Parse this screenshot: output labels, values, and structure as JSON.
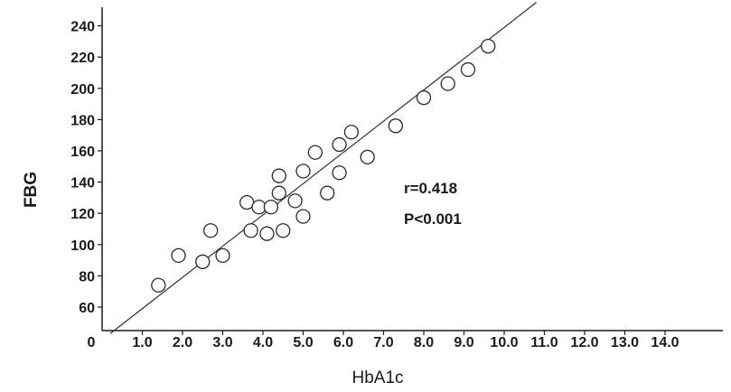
{
  "chart_data": {
    "type": "scatter",
    "xlabel": "HbA1c",
    "ylabel": "FBG",
    "xlim": [
      0,
      14.0
    ],
    "ylim": [
      40,
      250
    ],
    "x_ticks": [
      "0",
      "1.0",
      "2.0",
      "3.0",
      "4.0",
      "5.0",
      "6.0",
      "7.0",
      "8.0",
      "9.0",
      "10.0",
      "11.0",
      "12.0",
      "13.0",
      "14.0"
    ],
    "y_ticks": [
      "60",
      "80",
      "100",
      "120",
      "140",
      "160",
      "180",
      "200",
      "220",
      "240"
    ],
    "annotations": [
      "r=0.418",
      "P<0.001"
    ],
    "grid": false,
    "series": [
      {
        "marker": "open-circle",
        "points": [
          {
            "x": 1.4,
            "y": 74
          },
          {
            "x": 1.9,
            "y": 93
          },
          {
            "x": 2.5,
            "y": 89
          },
          {
            "x": 2.7,
            "y": 109
          },
          {
            "x": 3.0,
            "y": 93
          },
          {
            "x": 3.6,
            "y": 127
          },
          {
            "x": 3.7,
            "y": 109
          },
          {
            "x": 3.9,
            "y": 124
          },
          {
            "x": 4.1,
            "y": 107
          },
          {
            "x": 4.2,
            "y": 124
          },
          {
            "x": 4.4,
            "y": 133
          },
          {
            "x": 4.4,
            "y": 144
          },
          {
            "x": 4.5,
            "y": 109
          },
          {
            "x": 4.8,
            "y": 128
          },
          {
            "x": 5.0,
            "y": 118
          },
          {
            "x": 5.0,
            "y": 147
          },
          {
            "x": 5.3,
            "y": 159
          },
          {
            "x": 5.6,
            "y": 133
          },
          {
            "x": 5.9,
            "y": 146
          },
          {
            "x": 5.9,
            "y": 164
          },
          {
            "x": 6.2,
            "y": 172
          },
          {
            "x": 6.6,
            "y": 156
          },
          {
            "x": 7.3,
            "y": 176
          },
          {
            "x": 8.0,
            "y": 194
          },
          {
            "x": 8.6,
            "y": 203
          },
          {
            "x": 9.1,
            "y": 212
          },
          {
            "x": 9.6,
            "y": 227
          }
        ]
      }
    ],
    "fit_line": {
      "x": [
        0.2,
        10.8
      ],
      "y": [
        43,
        255
      ]
    },
    "colors": {
      "ink": "#1a1a1a",
      "background": "#ffffff"
    }
  }
}
